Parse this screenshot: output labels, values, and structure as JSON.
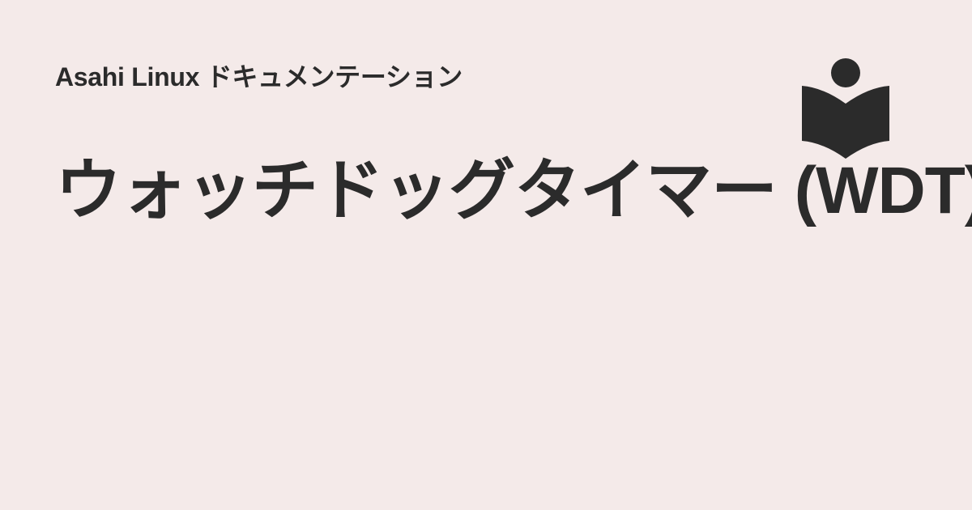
{
  "site": {
    "title": "Asahi Linux ドキュメンテーション"
  },
  "page": {
    "title": "ウォッチドッグタイマー (WDT)"
  },
  "logo": {
    "icon": "reading-person-book-icon",
    "color": "#2b2b2b"
  },
  "theme": {
    "background": "#f4eae9",
    "text": "#2b2b2b"
  }
}
